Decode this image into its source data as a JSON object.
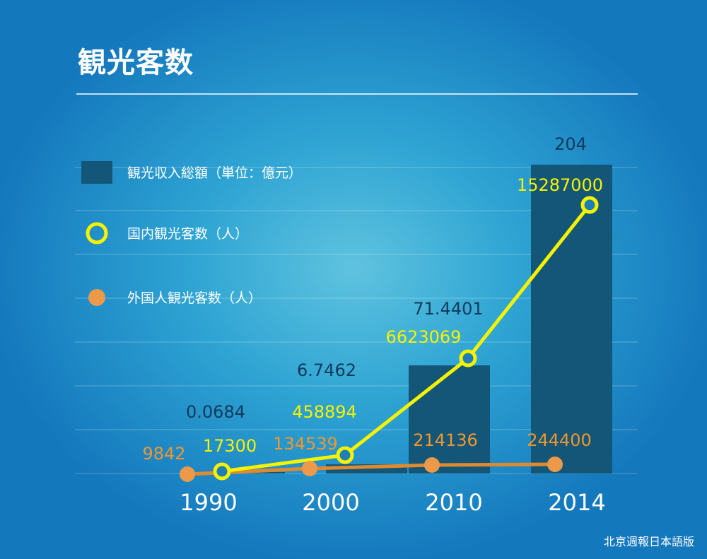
{
  "title": "観光客数",
  "source": "北京週報日本語版",
  "colors": {
    "bar": "#145678",
    "domestic": "#f6f200",
    "foreign": "#ec9a4a"
  },
  "chart_data": {
    "type": "bar",
    "categories": [
      "1990",
      "2000",
      "2010",
      "2014"
    ],
    "grid": true,
    "legend_position": "left",
    "series": [
      {
        "name": "観光収入総額（単位：億元）",
        "kind": "bar",
        "values": [
          0.0684,
          6.7462,
          71.4401,
          204
        ],
        "labels": [
          "0.0684",
          "6.7462",
          "71.4401",
          "204"
        ]
      },
      {
        "name": "国内観光客数（人）",
        "kind": "line",
        "marker": "open-circle",
        "values": [
          17300,
          458894,
          6623069,
          15287000
        ],
        "labels": [
          "17300",
          "458894",
          "6623069",
          "15287000"
        ]
      },
      {
        "name": "外国人観光客数（人）",
        "kind": "line",
        "marker": "filled-circle",
        "values": [
          9842,
          134539,
          214136,
          244400
        ],
        "labels": [
          "9842",
          "134539",
          "214136",
          "244400"
        ]
      }
    ]
  }
}
